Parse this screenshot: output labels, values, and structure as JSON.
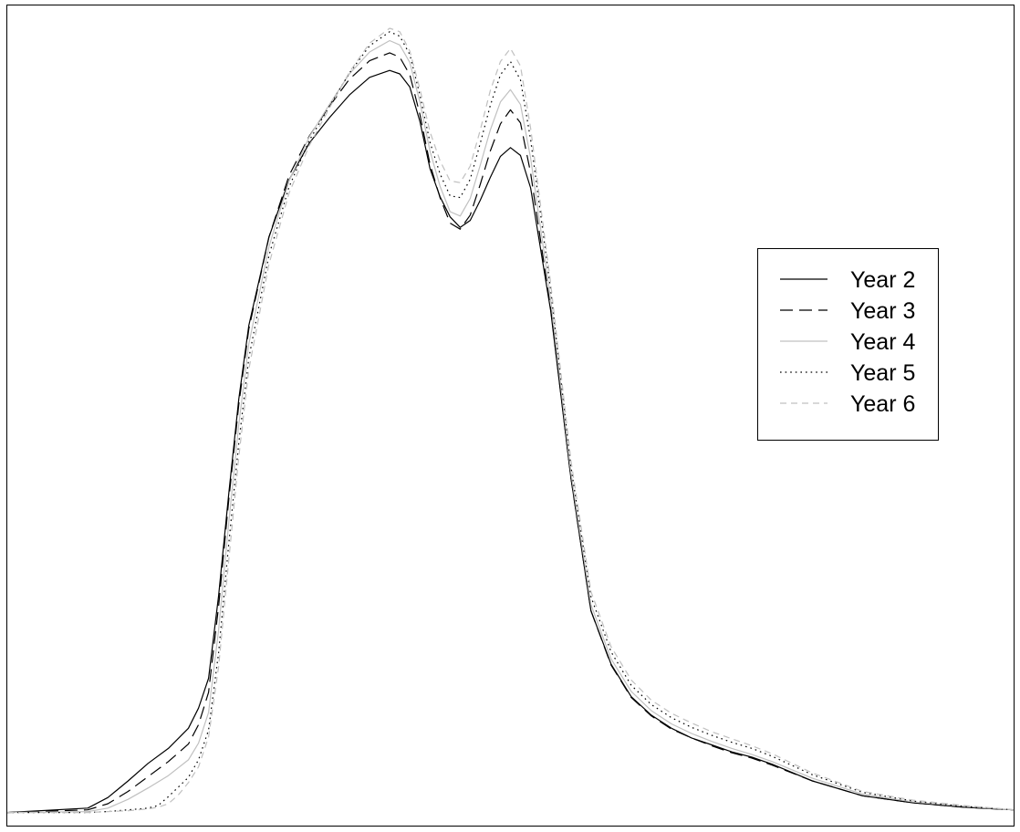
{
  "chart_data": {
    "type": "line",
    "title": "",
    "xlabel": "",
    "ylabel": "",
    "xlim": [
      0,
      100
    ],
    "ylim": [
      -1.5,
      92
    ],
    "grid": false,
    "legend_position": "right",
    "series": [
      {
        "name": "Year 2",
        "color": "#000000",
        "dash": "solid",
        "x": [
          0,
          8,
          10,
          12,
          14,
          16,
          18,
          19,
          20,
          21,
          22,
          23,
          24,
          26,
          28,
          30,
          32,
          34,
          36,
          38,
          39,
          40,
          41,
          42,
          43,
          44,
          45,
          46,
          47,
          48,
          49,
          50,
          51,
          52,
          54,
          56,
          58,
          60,
          62,
          64,
          66,
          68,
          70,
          72,
          74,
          76,
          80,
          85,
          90,
          95,
          100
        ],
        "y": [
          0,
          0.5,
          1.7,
          3.6,
          5.6,
          7.3,
          9.6,
          11.9,
          15.3,
          24.7,
          36.3,
          47.1,
          55.5,
          65.6,
          72.1,
          76.3,
          79.2,
          81.8,
          83.8,
          84.6,
          84.2,
          82.7,
          78.8,
          73.4,
          70.2,
          67.9,
          66.7,
          67.5,
          69.8,
          72.4,
          74.8,
          75.8,
          74.9,
          71.2,
          57.2,
          38.2,
          23.0,
          16.9,
          13.2,
          11.1,
          9.6,
          8.5,
          7.7,
          6.9,
          6.3,
          5.5,
          3.6,
          1.9,
          1.1,
          0.6,
          0.3
        ]
      },
      {
        "name": "Year 3",
        "color": "#000000",
        "dash": "long",
        "x": [
          0,
          8,
          10,
          12,
          14,
          16,
          18,
          19,
          20,
          21,
          22,
          23,
          24,
          26,
          28,
          30,
          32,
          34,
          36,
          38,
          39,
          40,
          41,
          42,
          43,
          44,
          45,
          46,
          47,
          48,
          49,
          50,
          51,
          52,
          54,
          56,
          58,
          60,
          62,
          64,
          66,
          68,
          70,
          72,
          74,
          76,
          80,
          85,
          90,
          95,
          100
        ],
        "y": [
          0,
          0.3,
          1.0,
          2.4,
          4.1,
          5.8,
          7.8,
          10.0,
          13.7,
          23.5,
          35.6,
          46.5,
          55.1,
          65.6,
          72.6,
          77.1,
          80.5,
          83.6,
          85.7,
          86.6,
          86.1,
          84.1,
          79.6,
          73.9,
          70.1,
          67.2,
          66.5,
          68.1,
          71.6,
          75.4,
          78.5,
          80.1,
          78.6,
          72.9,
          57.4,
          38.2,
          23.0,
          16.8,
          13.1,
          11.0,
          9.5,
          8.5,
          7.6,
          6.8,
          6.2,
          5.4,
          3.6,
          1.9,
          1.1,
          0.6,
          0.3
        ]
      },
      {
        "name": "Year 4",
        "color": "#c0c0c0",
        "dash": "solid",
        "x": [
          0,
          8,
          10,
          12,
          14,
          16,
          18,
          19,
          20,
          21,
          22,
          23,
          24,
          26,
          28,
          30,
          32,
          34,
          36,
          38,
          39,
          40,
          41,
          42,
          43,
          44,
          45,
          46,
          47,
          48,
          49,
          50,
          51,
          52,
          54,
          56,
          58,
          60,
          62,
          64,
          66,
          68,
          70,
          72,
          74,
          76,
          80,
          85,
          90,
          95,
          100
        ],
        "y": [
          0,
          0.1,
          0.5,
          1.5,
          2.8,
          4.2,
          6.0,
          7.9,
          11.4,
          20.8,
          33.0,
          44.2,
          53.4,
          64.5,
          72.0,
          77.0,
          80.7,
          84.2,
          86.7,
          88.0,
          87.5,
          85.5,
          81.0,
          75.4,
          71.4,
          68.5,
          68.0,
          70.0,
          73.8,
          77.8,
          81.0,
          82.4,
          80.7,
          74.6,
          58.5,
          38.8,
          23.7,
          17.5,
          13.8,
          11.6,
          10.1,
          9.0,
          8.1,
          7.3,
          6.6,
          5.8,
          3.9,
          2.1,
          1.2,
          0.7,
          0.3
        ]
      },
      {
        "name": "Year 5",
        "color": "#000000",
        "dash": "dotted",
        "x": [
          0,
          8,
          10,
          12,
          14,
          15,
          16,
          18,
          19,
          20,
          21,
          22,
          23,
          24,
          26,
          28,
          30,
          32,
          34,
          36,
          38,
          39,
          40,
          41,
          42,
          43,
          44,
          45,
          46,
          47,
          48,
          49,
          50,
          51,
          52,
          54,
          56,
          58,
          60,
          62,
          64,
          66,
          68,
          70,
          72,
          74,
          76,
          80,
          85,
          90,
          95,
          100
        ],
        "y": [
          0,
          0,
          0.1,
          0.3,
          0.5,
          0.8,
          1.8,
          4.0,
          6.0,
          9.4,
          18.2,
          30.6,
          42.1,
          51.8,
          63.5,
          71.3,
          76.6,
          80.5,
          84.3,
          87.4,
          89.0,
          88.5,
          86.4,
          81.8,
          76.4,
          72.8,
          70.3,
          70.1,
          72.2,
          76.3,
          80.6,
          84.1,
          85.6,
          83.5,
          76.7,
          59.6,
          39.5,
          24.6,
          18.3,
          14.5,
          12.3,
          10.8,
          9.7,
          8.8,
          8.0,
          7.3,
          6.4,
          4.3,
          2.3,
          1.3,
          0.7,
          0.3
        ]
      },
      {
        "name": "Year 6",
        "color": "#c0c0c0",
        "dash": "short",
        "x": [
          0,
          8,
          10,
          12,
          14,
          15,
          16,
          17,
          18,
          19,
          20,
          21,
          22,
          23,
          24,
          26,
          28,
          30,
          32,
          34,
          36,
          38,
          39,
          40,
          41,
          42,
          43,
          44,
          45,
          46,
          47,
          48,
          49,
          50,
          51,
          52,
          54,
          56,
          58,
          60,
          62,
          64,
          66,
          68,
          70,
          72,
          74,
          76,
          80,
          85,
          90,
          95,
          100
        ],
        "y": [
          0,
          0,
          0.1,
          0.2,
          0.4,
          0.6,
          1.0,
          2.0,
          3.4,
          5.2,
          8.6,
          16.6,
          28.7,
          40.5,
          50.5,
          62.5,
          70.6,
          76.0,
          80.3,
          84.4,
          87.7,
          89.4,
          89.0,
          86.8,
          82.5,
          77.6,
          74.3,
          72.0,
          71.8,
          73.7,
          77.8,
          82.3,
          85.6,
          87.1,
          85.1,
          78.0,
          60.3,
          40.2,
          25.2,
          18.9,
          15.1,
          12.8,
          11.3,
          10.2,
          9.2,
          8.4,
          7.6,
          6.7,
          4.5,
          2.4,
          1.4,
          0.8,
          0.3
        ]
      }
    ]
  }
}
